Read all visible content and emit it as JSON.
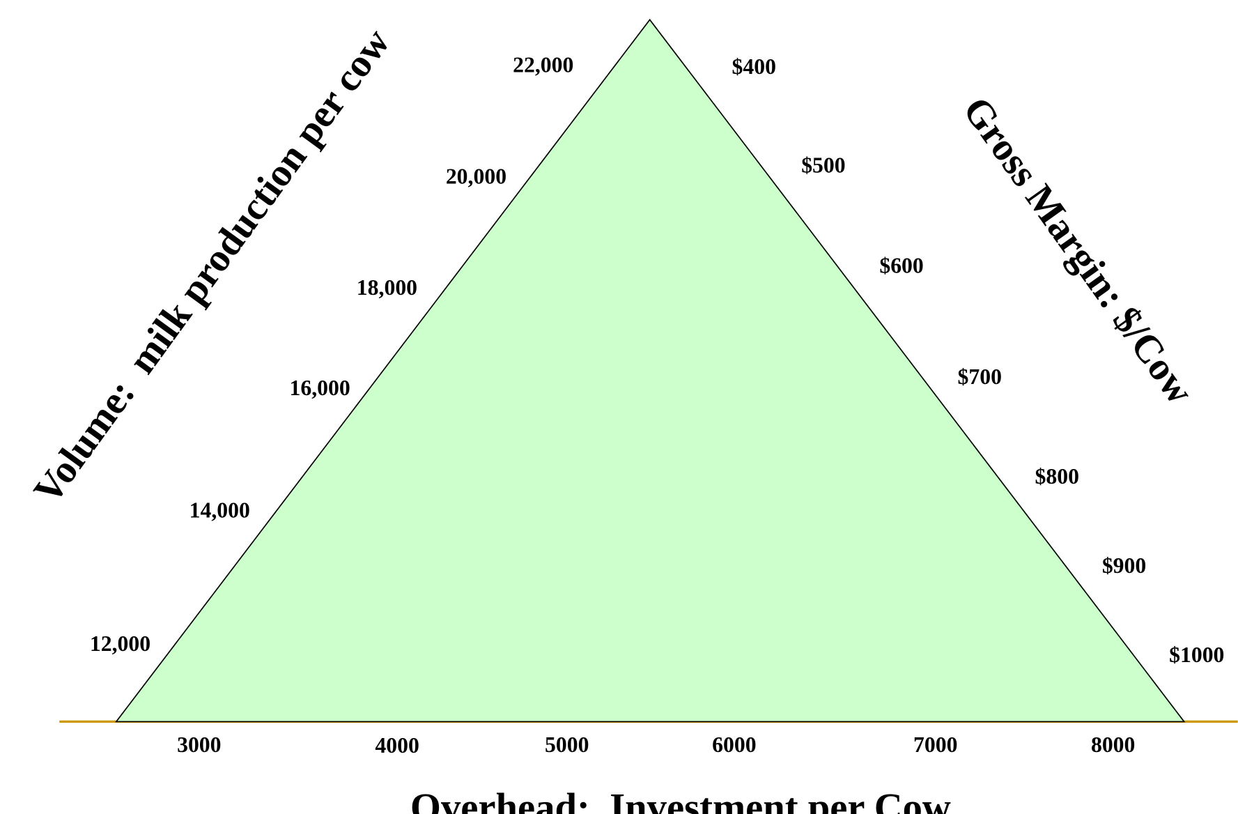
{
  "left_axis": {
    "title": "Volume:  milk production per cow",
    "labels": [
      "22,000",
      "20,000",
      "18,000",
      "16,000",
      "14,000",
      "12,000"
    ]
  },
  "right_axis": {
    "title": "Gross Margin: $/Cow",
    "labels": [
      "$400",
      "$500",
      "$600",
      "$700",
      "$800",
      "$900",
      "$1000"
    ]
  },
  "bottom_axis": {
    "title": "Overhead:  Investment per Cow",
    "labels": [
      "3000",
      "4000",
      "5000",
      "6000",
      "7000",
      "8000"
    ]
  }
}
